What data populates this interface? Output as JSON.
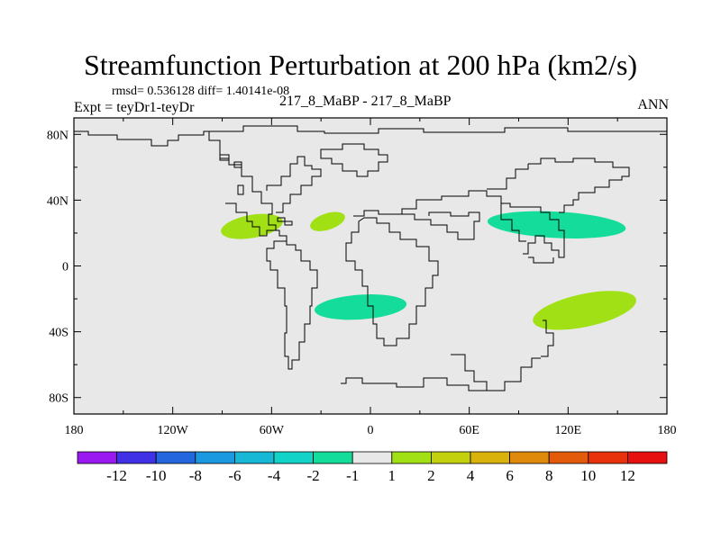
{
  "title": "Streamfunction Perturbation at 200 hPa (km2/s)",
  "stats": "rmsd= 0.536128 diff= 1.40141e-08",
  "left_label": "Expt = teyDr1-teyDr",
  "center_label": "217_8_MaBP - 217_8_MaBP",
  "right_label": "ANN",
  "chart_data": {
    "type": "heatmap",
    "projection": "cylindrical-equidistant",
    "title": "Streamfunction Perturbation at 200 hPa (km2/s)",
    "xlim": [
      -180,
      180
    ],
    "ylim": [
      -90,
      90
    ],
    "x_ticks": [
      {
        "value": -180,
        "label": "180"
      },
      {
        "value": -120,
        "label": "120W"
      },
      {
        "value": -60,
        "label": "60W"
      },
      {
        "value": 0,
        "label": "0"
      },
      {
        "value": 60,
        "label": "60E"
      },
      {
        "value": 120,
        "label": "120E"
      },
      {
        "value": 180,
        "label": "180"
      }
    ],
    "y_ticks": [
      {
        "value": 80,
        "label": "80N"
      },
      {
        "value": 40,
        "label": "40N"
      },
      {
        "value": 0,
        "label": "0"
      },
      {
        "value": -40,
        "label": "40S"
      },
      {
        "value": -80,
        "label": "80S"
      }
    ],
    "colorbar": {
      "labels": [
        "-12",
        "-10",
        "-8",
        "-6",
        "-4",
        "-2",
        "-1",
        "1",
        "2",
        "4",
        "6",
        "8",
        "10",
        "12"
      ],
      "colors": [
        "#9a19f0",
        "#4030e6",
        "#2466dd",
        "#1a98e0",
        "#17b8d6",
        "#12d3c8",
        "#14dc9a",
        "#e8e8e8",
        "#a1e015",
        "#c2d00e",
        "#d9b20c",
        "#e08a0b",
        "#e45a0b",
        "#e8320b",
        "#e61010"
      ]
    },
    "background_value_band": "-1 to 1",
    "anomalies": [
      {
        "lon": -72,
        "lat": 24,
        "value_band": "1 to 2",
        "color": "#a1e015",
        "rx": 19,
        "ry": 7,
        "rot": -10
      },
      {
        "lon": -26,
        "lat": 27,
        "value_band": "1 to 2",
        "color": "#a1e015",
        "rx": 11,
        "ry": 5,
        "rot": -18
      },
      {
        "lon": -6,
        "lat": -25,
        "value_band": "-2 to -1",
        "color": "#14dc9a",
        "rx": 28,
        "ry": 7.5,
        "rot": -4
      },
      {
        "lon": 113,
        "lat": 25,
        "value_band": "-2 to -1",
        "color": "#14dc9a",
        "rx": 42,
        "ry": 8,
        "rot": 3
      },
      {
        "lon": 130,
        "lat": -27,
        "value_band": "1 to 2",
        "color": "#a1e015",
        "rx": 32,
        "ry": 10,
        "rot": -12
      }
    ]
  }
}
